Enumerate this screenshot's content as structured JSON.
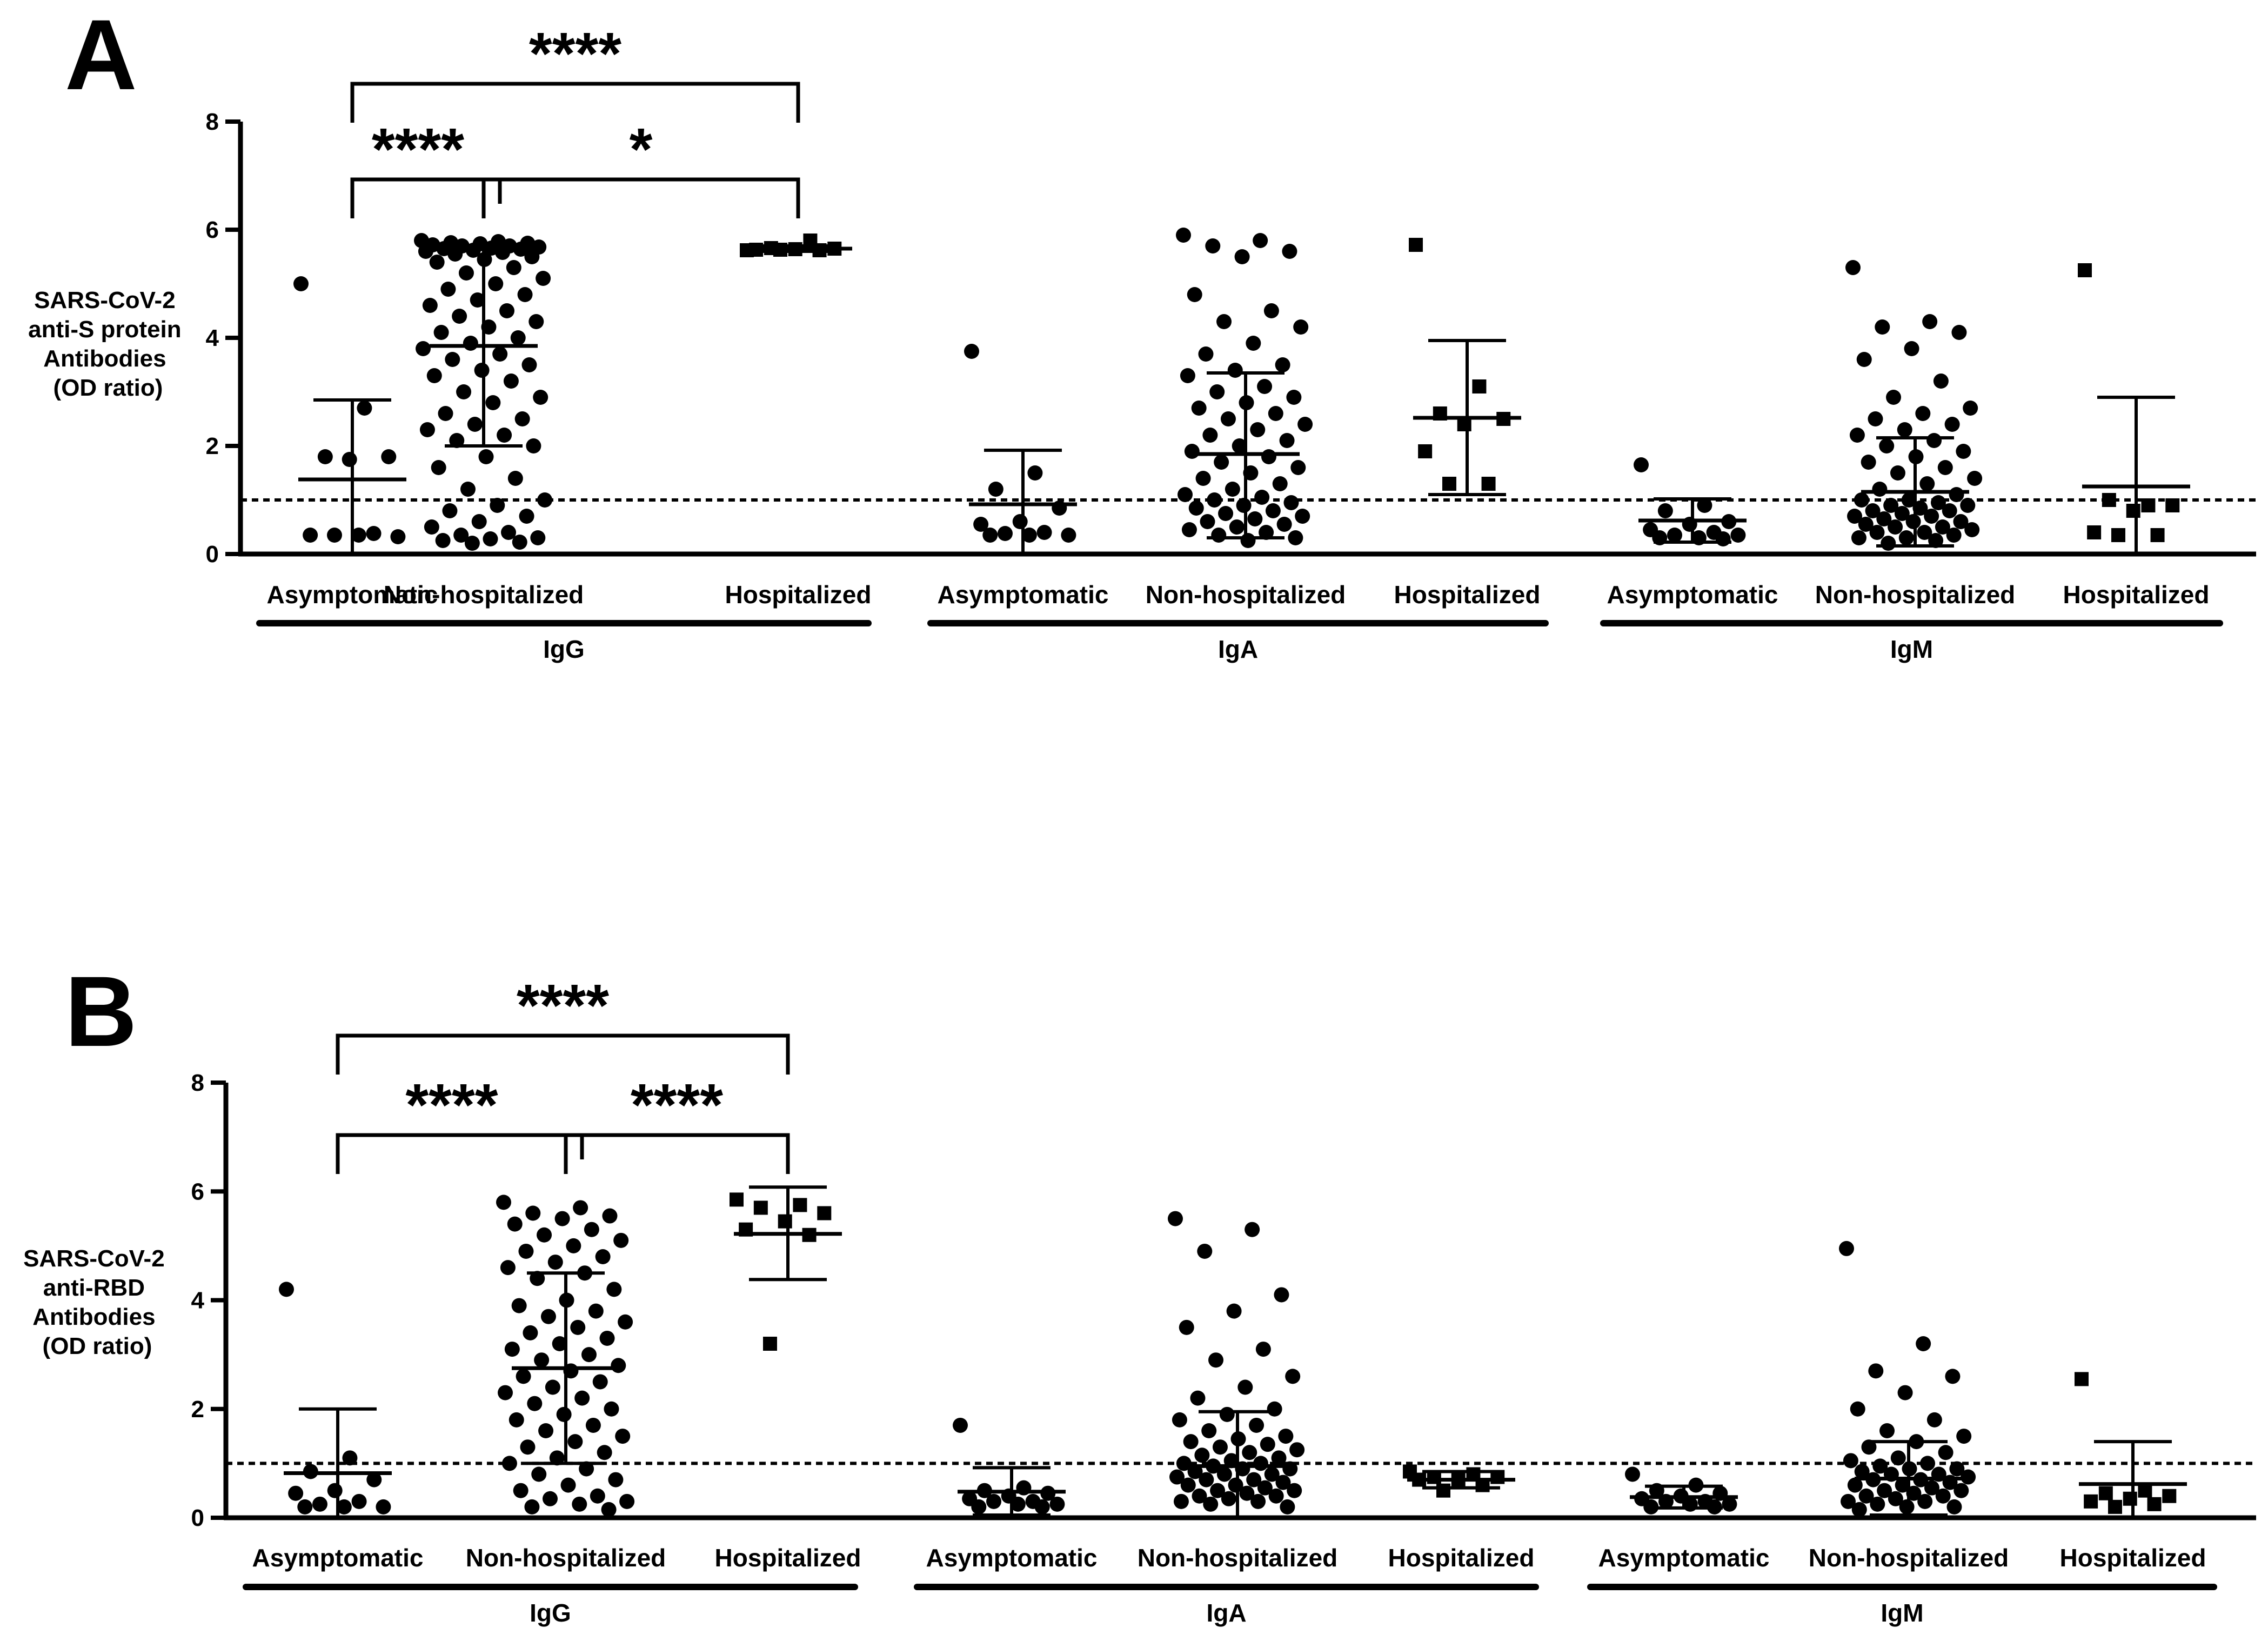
{
  "chart_data": [
    {
      "type": "scatter",
      "panel_label": "A",
      "ylabel_lines": [
        "SARS-CoV-2",
        "anti-S protein",
        "Antibodies",
        "(OD ratio)"
      ],
      "ylim": [
        0,
        8
      ],
      "yticks": [
        0,
        2,
        4,
        6,
        8
      ],
      "cutoff": 1,
      "categories": [
        "Asymptomatic",
        "Non-hospitalized",
        "Hospitalized"
      ],
      "groups": [
        "IgG",
        "IgA",
        "IgM"
      ],
      "significance": [
        {
          "from": 0,
          "to": 1,
          "label": "****",
          "level": 1
        },
        {
          "from": 1,
          "to": 2,
          "label": "*",
          "level": 1
        },
        {
          "from": 0,
          "to": 2,
          "label": "****",
          "level": 2
        }
      ],
      "series": [
        {
          "group": "IgG",
          "category": "Asymptomatic",
          "marker": "circle",
          "mean": 1.38,
          "sd_low": 0.0,
          "sd_high": 2.85,
          "values": [
            5.0,
            2.7,
            1.8,
            1.8,
            1.75,
            0.35,
            0.38,
            0.35,
            0.32,
            0.35
          ]
        },
        {
          "group": "IgG",
          "category": "Non-hospitalized",
          "marker": "circle",
          "mean": 3.85,
          "sd_low": 2.0,
          "sd_high": 5.7,
          "values": [
            5.8,
            5.78,
            5.76,
            5.75,
            5.74,
            5.72,
            5.7,
            5.7,
            5.68,
            5.66,
            5.65,
            5.64,
            5.62,
            5.6,
            5.58,
            5.55,
            5.5,
            5.45,
            5.4,
            5.3,
            5.2,
            5.1,
            5.0,
            4.9,
            4.8,
            4.7,
            4.6,
            4.5,
            4.4,
            4.3,
            4.2,
            4.1,
            4.0,
            3.9,
            3.8,
            3.7,
            3.6,
            3.5,
            3.4,
            3.3,
            3.2,
            3.0,
            2.9,
            2.8,
            2.6,
            2.5,
            2.4,
            2.3,
            2.2,
            2.1,
            2.0,
            1.8,
            1.6,
            1.4,
            1.2,
            1.0,
            0.9,
            0.8,
            0.7,
            0.6,
            0.5,
            0.4,
            0.35,
            0.3,
            0.28,
            0.25,
            0.22,
            0.2
          ]
        },
        {
          "group": "IgG",
          "category": "Hospitalized",
          "marker": "square",
          "mean": 5.65,
          "sd_low": 5.6,
          "sd_high": 5.7,
          "values": [
            5.62,
            5.8,
            5.66,
            5.65,
            5.64,
            5.63,
            5.62,
            5.63
          ]
        },
        {
          "group": "IgA",
          "category": "Asymptomatic",
          "marker": "circle",
          "mean": 0.92,
          "sd_low": 0.0,
          "sd_high": 1.92,
          "values": [
            3.75,
            1.5,
            1.2,
            0.85,
            0.6,
            0.55,
            0.4,
            0.38,
            0.35,
            0.35,
            0.35
          ]
        },
        {
          "group": "IgA",
          "category": "Non-hospitalized",
          "marker": "circle",
          "mean": 1.85,
          "sd_low": 0.3,
          "sd_high": 3.35,
          "values": [
            5.9,
            5.8,
            5.7,
            5.6,
            5.5,
            4.8,
            4.5,
            4.3,
            4.2,
            3.9,
            3.7,
            3.5,
            3.4,
            3.3,
            3.1,
            3.0,
            2.9,
            2.8,
            2.7,
            2.6,
            2.5,
            2.4,
            2.3,
            2.2,
            2.1,
            2.0,
            1.9,
            1.8,
            1.7,
            1.6,
            1.5,
            1.4,
            1.3,
            1.2,
            1.1,
            1.05,
            1.0,
            0.95,
            0.9,
            0.85,
            0.8,
            0.75,
            0.7,
            0.65,
            0.6,
            0.55,
            0.5,
            0.45,
            0.4,
            0.35,
            0.3,
            0.25
          ]
        },
        {
          "group": "IgA",
          "category": "Hospitalized",
          "marker": "square",
          "mean": 2.52,
          "sd_low": 1.1,
          "sd_high": 3.95,
          "values": [
            5.72,
            3.1,
            2.6,
            2.5,
            2.4,
            1.9,
            1.3,
            1.3
          ]
        },
        {
          "group": "IgM",
          "category": "Asymptomatic",
          "marker": "circle",
          "mean": 0.62,
          "sd_low": 0.22,
          "sd_high": 1.02,
          "values": [
            1.65,
            0.9,
            0.8,
            0.6,
            0.55,
            0.45,
            0.4,
            0.35,
            0.35,
            0.3,
            0.3,
            0.28
          ]
        },
        {
          "group": "IgM",
          "category": "Non-hospitalized",
          "marker": "circle",
          "mean": 1.15,
          "sd_low": 0.15,
          "sd_high": 2.15,
          "values": [
            5.3,
            4.3,
            4.2,
            4.1,
            3.8,
            3.6,
            3.2,
            2.9,
            2.7,
            2.6,
            2.5,
            2.4,
            2.3,
            2.2,
            2.1,
            2.0,
            1.9,
            1.8,
            1.7,
            1.6,
            1.5,
            1.4,
            1.3,
            1.2,
            1.1,
            1.0,
            1.0,
            0.95,
            0.9,
            0.9,
            0.85,
            0.8,
            0.8,
            0.75,
            0.7,
            0.7,
            0.65,
            0.6,
            0.6,
            0.55,
            0.5,
            0.5,
            0.45,
            0.4,
            0.4,
            0.35,
            0.3,
            0.3,
            0.25,
            0.2
          ]
        },
        {
          "group": "IgM",
          "category": "Hospitalized",
          "marker": "square",
          "mean": 1.25,
          "sd_low": 0.0,
          "sd_high": 2.9,
          "values": [
            5.25,
            0.9,
            1.0,
            0.9,
            0.8,
            0.4,
            0.35,
            0.35
          ]
        }
      ]
    },
    {
      "type": "scatter",
      "panel_label": "B",
      "ylabel_lines": [
        "SARS-CoV-2",
        "anti-RBD",
        "Antibodies",
        "(OD ratio)"
      ],
      "ylim": [
        0,
        8
      ],
      "yticks": [
        0,
        2,
        4,
        6,
        8
      ],
      "cutoff": 1,
      "categories": [
        "Asymptomatic",
        "Non-hospitalized",
        "Hospitalized"
      ],
      "groups": [
        "IgG",
        "IgA",
        "IgM"
      ],
      "significance": [
        {
          "from": 0,
          "to": 1,
          "label": "****",
          "level": 1
        },
        {
          "from": 1,
          "to": 2,
          "label": "****",
          "level": 1
        },
        {
          "from": 0,
          "to": 2,
          "label": "****",
          "level": 2
        }
      ],
      "series": [
        {
          "group": "IgG",
          "category": "Asymptomatic",
          "marker": "circle",
          "mean": 0.82,
          "sd_low": 0.0,
          "sd_high": 2.0,
          "values": [
            4.2,
            1.1,
            0.85,
            0.7,
            0.5,
            0.45,
            0.3,
            0.25,
            0.2,
            0.2,
            0.2
          ]
        },
        {
          "group": "IgG",
          "category": "Non-hospitalized",
          "marker": "circle",
          "mean": 2.75,
          "sd_low": 1.0,
          "sd_high": 4.5,
          "values": [
            5.8,
            5.7,
            5.6,
            5.55,
            5.5,
            5.4,
            5.3,
            5.2,
            5.1,
            5.0,
            4.9,
            4.8,
            4.7,
            4.6,
            4.5,
            4.4,
            4.2,
            4.0,
            3.9,
            3.8,
            3.7,
            3.6,
            3.5,
            3.4,
            3.3,
            3.2,
            3.1,
            3.0,
            2.9,
            2.8,
            2.7,
            2.6,
            2.5,
            2.4,
            2.3,
            2.2,
            2.1,
            2.0,
            1.9,
            1.8,
            1.7,
            1.6,
            1.5,
            1.4,
            1.3,
            1.2,
            1.1,
            1.0,
            0.9,
            0.8,
            0.7,
            0.6,
            0.5,
            0.4,
            0.35,
            0.3,
            0.25,
            0.2,
            0.15
          ]
        },
        {
          "group": "IgG",
          "category": "Hospitalized",
          "marker": "square",
          "mean": 5.22,
          "sd_low": 4.38,
          "sd_high": 6.08,
          "values": [
            5.85,
            5.75,
            5.7,
            5.6,
            5.45,
            5.3,
            5.2,
            3.2
          ]
        },
        {
          "group": "IgA",
          "category": "Asymptomatic",
          "marker": "circle",
          "mean": 0.48,
          "sd_low": 0.05,
          "sd_high": 0.92,
          "values": [
            1.7,
            0.55,
            0.5,
            0.45,
            0.4,
            0.35,
            0.3,
            0.3,
            0.25,
            0.25,
            0.2,
            0.2
          ]
        },
        {
          "group": "IgA",
          "category": "Non-hospitalized",
          "marker": "circle",
          "mean": 0.95,
          "sd_low": 0.0,
          "sd_high": 1.95,
          "values": [
            5.5,
            5.3,
            4.9,
            4.1,
            3.8,
            3.5,
            3.1,
            2.9,
            2.6,
            2.4,
            2.2,
            2.0,
            1.9,
            1.8,
            1.7,
            1.6,
            1.5,
            1.45,
            1.4,
            1.35,
            1.3,
            1.25,
            1.2,
            1.15,
            1.1,
            1.05,
            1.0,
            1.0,
            0.95,
            0.9,
            0.9,
            0.85,
            0.8,
            0.8,
            0.75,
            0.7,
            0.7,
            0.65,
            0.6,
            0.6,
            0.55,
            0.5,
            0.5,
            0.45,
            0.4,
            0.4,
            0.35,
            0.3,
            0.3,
            0.25,
            0.2
          ]
        },
        {
          "group": "IgA",
          "category": "Hospitalized",
          "marker": "square",
          "mean": 0.7,
          "sd_low": 0.55,
          "sd_high": 0.85,
          "values": [
            0.85,
            0.8,
            0.75,
            0.75,
            0.7,
            0.7,
            0.6,
            0.5
          ]
        },
        {
          "group": "IgM",
          "category": "Asymptomatic",
          "marker": "circle",
          "mean": 0.38,
          "sd_low": 0.18,
          "sd_high": 0.58,
          "values": [
            0.8,
            0.6,
            0.5,
            0.45,
            0.4,
            0.35,
            0.3,
            0.3,
            0.25,
            0.25,
            0.2,
            0.2
          ]
        },
        {
          "group": "IgM",
          "category": "Non-hospitalized",
          "marker": "circle",
          "mean": 0.72,
          "sd_low": 0.05,
          "sd_high": 1.4,
          "values": [
            4.95,
            3.2,
            2.7,
            2.6,
            2.3,
            2.0,
            1.8,
            1.6,
            1.5,
            1.4,
            1.3,
            1.2,
            1.1,
            1.05,
            1.0,
            0.95,
            0.9,
            0.9,
            0.85,
            0.8,
            0.8,
            0.75,
            0.7,
            0.7,
            0.65,
            0.6,
            0.6,
            0.55,
            0.5,
            0.5,
            0.45,
            0.4,
            0.4,
            0.35,
            0.3,
            0.3,
            0.25,
            0.2,
            0.2,
            0.15
          ]
        },
        {
          "group": "IgM",
          "category": "Hospitalized",
          "marker": "square",
          "mean": 0.62,
          "sd_low": 0.0,
          "sd_high": 1.4,
          "values": [
            2.55,
            0.5,
            0.45,
            0.4,
            0.35,
            0.3,
            0.25,
            0.2
          ]
        }
      ]
    }
  ]
}
